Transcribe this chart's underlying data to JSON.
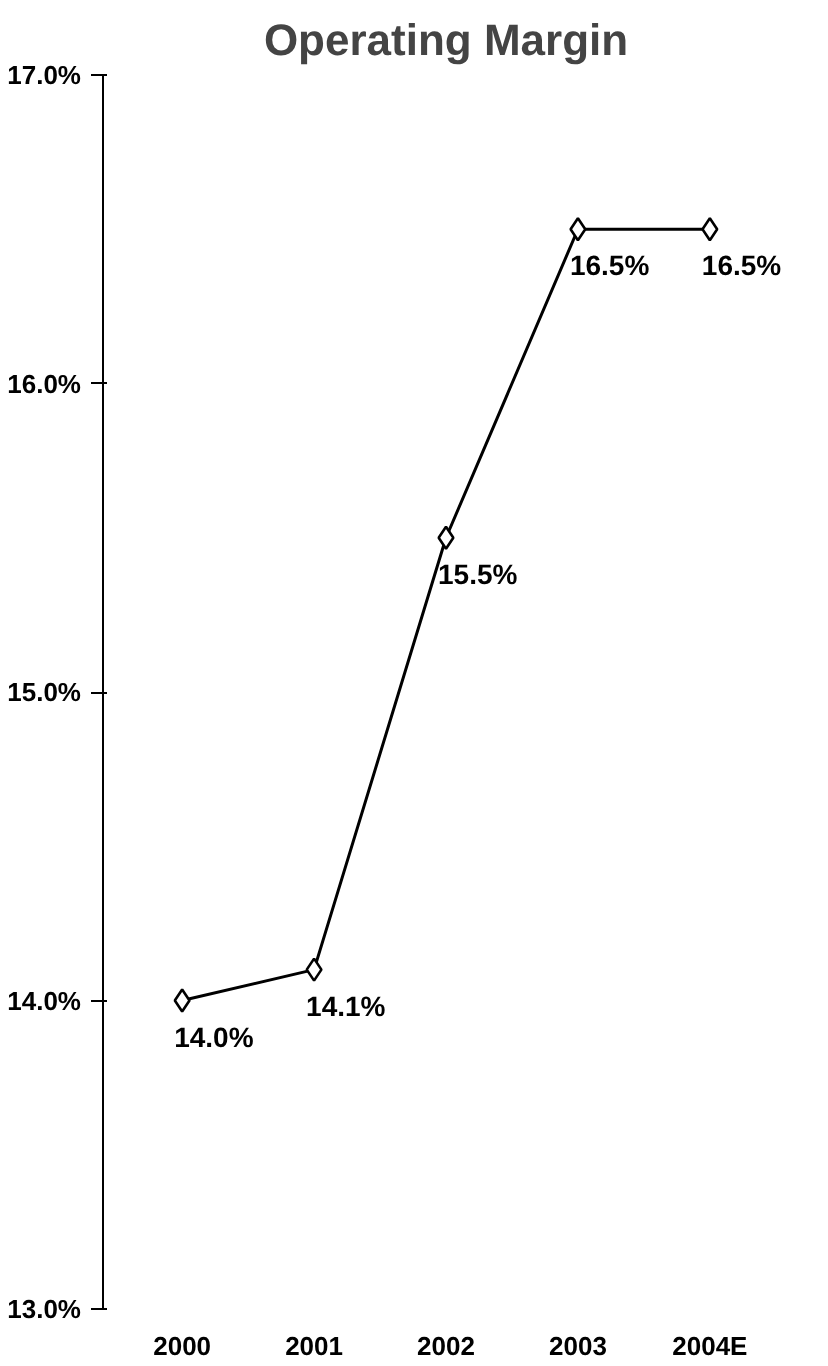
{
  "chart_data": {
    "type": "line",
    "title": "Operating Margin",
    "categories": [
      "2000",
      "2001",
      "2002",
      "2003",
      "2004E"
    ],
    "series": [
      {
        "color": "#000000",
        "values": [
          14.0,
          14.1,
          15.5,
          16.5,
          16.5
        ]
      }
    ],
    "value_labels": [
      "14.0%",
      "14.1%",
      "15.5%",
      "16.5%",
      "16.5%"
    ],
    "ylim": [
      13.0,
      17.0
    ],
    "yticks": [
      {
        "value": 13.0,
        "label": "13.0%"
      },
      {
        "value": 14.0,
        "label": "14.0%"
      },
      {
        "value": 15.0,
        "label": "15.0%"
      },
      {
        "value": 16.0,
        "label": "16.0%"
      },
      {
        "value": 17.0,
        "label": "17.0%"
      }
    ],
    "marker": "diamond",
    "line_style": "solid",
    "grid": false
  }
}
